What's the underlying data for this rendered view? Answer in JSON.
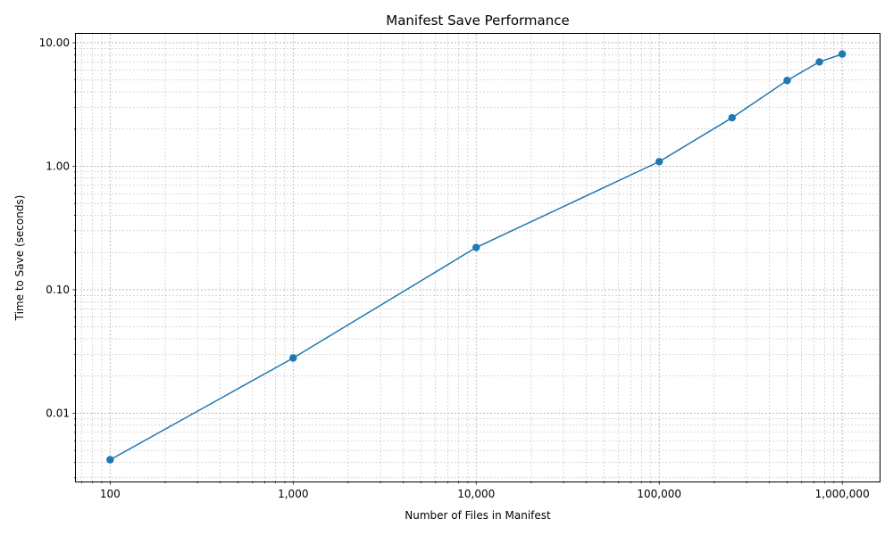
{
  "chart_data": {
    "type": "line",
    "title": "Manifest Save Performance",
    "xlabel": "Number of Files in Manifest",
    "ylabel": "Time to Save (seconds)",
    "x_scale": "log",
    "y_scale": "log",
    "xlim": [
      65,
      1600000
    ],
    "ylim": [
      0.0028,
      11.8
    ],
    "grid": true,
    "legend": "none",
    "x_ticks": [
      {
        "value": 100,
        "label": "100"
      },
      {
        "value": 1000,
        "label": "1,000"
      },
      {
        "value": 10000,
        "label": "10,000"
      },
      {
        "value": 100000,
        "label": "100,000"
      },
      {
        "value": 1000000,
        "label": "1,000,000"
      }
    ],
    "y_ticks": [
      {
        "value": 0.01,
        "label": "0.01"
      },
      {
        "value": 0.1,
        "label": "0.10"
      },
      {
        "value": 1,
        "label": "1.00"
      },
      {
        "value": 10,
        "label": "10.00"
      }
    ],
    "series": [
      {
        "color": "#1f77b4",
        "marker": "circle",
        "x": [
          100,
          1000,
          10000,
          100000,
          250000,
          500000,
          750000,
          1000000
        ],
        "y": [
          0.0042,
          0.028,
          0.22,
          1.09,
          2.47,
          4.95,
          7.0,
          8.1
        ]
      }
    ]
  }
}
